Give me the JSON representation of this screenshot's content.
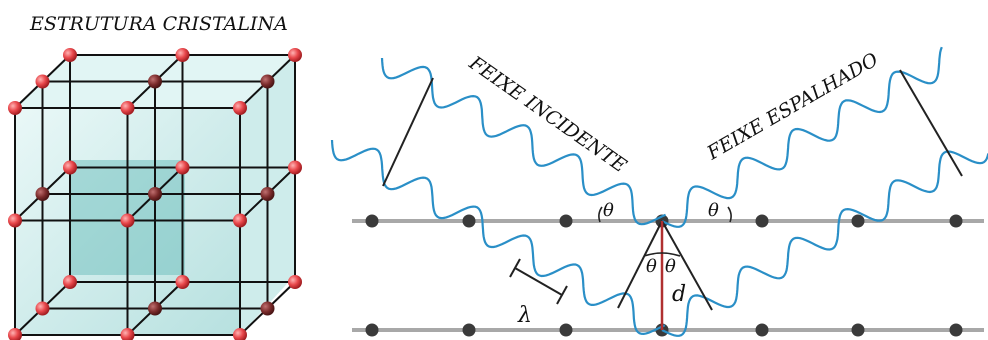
{
  "crystal": {
    "title": "ESTRUTURA CRISTALINA"
  },
  "diffraction": {
    "incident_label": "FEIXE INCIDENTE",
    "scattered_label": "FEIXE ESPALHADO",
    "theta_symbol": "θ",
    "spacing_symbol": "d",
    "wavelength_symbol": "λ"
  },
  "colors": {
    "wave": "#2a8fc7",
    "plane_line": "#a8a8a8",
    "atom_dark": "#3a3a3a",
    "lattice_atom_light": "#e8474b",
    "lattice_atom_dark": "#7a2b2b",
    "cube_fill": "#7cc8c6",
    "spacing_line": "#b03030"
  }
}
